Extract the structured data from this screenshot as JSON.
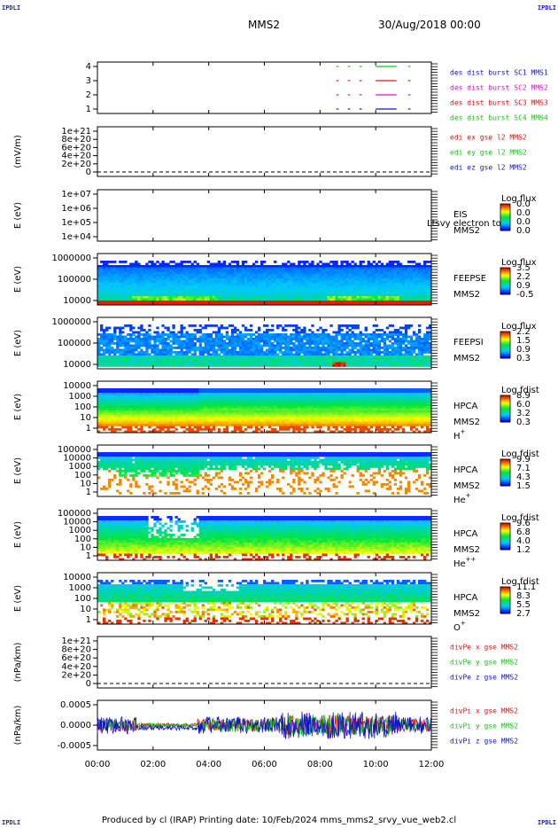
{
  "corner_label": "IPDLI",
  "header": {
    "spacecraft": "MMS2",
    "date": "30/Aug/2018 00:00"
  },
  "footer": {
    "text": "Produced by cl (IRAP)    Printing date: 10/Feb/2024    mms_mms2_srvy_vue_web2.cl"
  },
  "chart_data": {
    "type": "multi-panel",
    "x": {
      "ticks": [
        "00:00",
        "02:00",
        "04:00",
        "06:00",
        "08:00",
        "10:00",
        "12:00"
      ],
      "range": [
        "00:00",
        "12:00"
      ]
    },
    "panels": [
      {
        "id": "burst",
        "type": "timeline",
        "yticks": [
          "4",
          "3",
          "2",
          "1"
        ],
        "legend": [
          {
            "label": "des dist burst SC1 MMS1",
            "color": "#1414c8"
          },
          {
            "label": "des dist burst SC2 MMS2",
            "color": "#d214d2"
          },
          {
            "label": "des dist burst SC3 MMS3",
            "color": "#e01414"
          },
          {
            "label": "des dist burst SC4 MMS4",
            "color": "#14c814"
          }
        ],
        "intervals": [
          [
            "08:35",
            "08:40"
          ],
          [
            "09:00",
            "09:05"
          ],
          [
            "09:25",
            "09:30"
          ],
          [
            "10:00",
            "10:45"
          ],
          [
            "11:10",
            "11:15"
          ]
        ]
      },
      {
        "id": "edi",
        "type": "line",
        "ylabel": "(mV/m)",
        "yticks": [
          "1e+21",
          "8e+20",
          "6e+20",
          "4e+20",
          "2e+20",
          "0"
        ],
        "legend": [
          {
            "label": "edi ex gse l2 MMS2",
            "color": "#e01414"
          },
          {
            "label": "edi ey gse l2 MMS2",
            "color": "#14c814"
          },
          {
            "label": "edi ez gse l2 MMS2",
            "color": "#1414c8"
          }
        ]
      },
      {
        "id": "eis",
        "type": "heatmap",
        "ylabel": "E (eV)",
        "yticks": [
          "1e+07",
          "1e+06",
          "1e+05",
          "1e+04"
        ],
        "names": [
          "EIS",
          "MMS2"
        ],
        "overlay": "Ltsvy electron to",
        "cbar_title": "Log flux",
        "cbar_ticks": [
          "0.0",
          "0.0",
          "0.0",
          "0.0"
        ]
      },
      {
        "id": "feepse",
        "type": "heatmap",
        "ylabel": "E (eV)",
        "yticks": [
          "1000000",
          "100000",
          "10000"
        ],
        "names": [
          "FEEPSE",
          "MMS2"
        ],
        "cbar_title": "Log flux",
        "cbar_ticks": [
          "3.5",
          "2.2",
          "0.9",
          "-0.5"
        ]
      },
      {
        "id": "feepsi",
        "type": "heatmap",
        "ylabel": "E (eV)",
        "yticks": [
          "1000000",
          "100000",
          "10000"
        ],
        "names": [
          "FEEPSI",
          "MMS2"
        ],
        "cbar_title": "Log flux",
        "cbar_ticks": [
          "2.2",
          "1.5",
          "0.9",
          "0.3"
        ]
      },
      {
        "id": "hpca_h",
        "type": "heatmap",
        "ylabel": "E (eV)",
        "yticks": [
          "10000",
          "1000",
          "100",
          "10",
          "1"
        ],
        "names": [
          "HPCA",
          "MMS2"
        ],
        "species": "H",
        "species_sup": "+",
        "cbar_title": "Log fdist",
        "cbar_ticks": [
          "8.9",
          "6.0",
          "3.2",
          "0.3"
        ]
      },
      {
        "id": "hpca_he1",
        "type": "heatmap",
        "ylabel": "E (eV)",
        "yticks": [
          "100000",
          "10000",
          "1000",
          "100",
          "10",
          "1"
        ],
        "names": [
          "HPCA",
          "MMS2"
        ],
        "species": "He",
        "species_sup": "+",
        "cbar_title": "Log fdist",
        "cbar_ticks": [
          "9.9",
          "7.1",
          "4.3",
          "1.5"
        ]
      },
      {
        "id": "hpca_he2",
        "type": "heatmap",
        "ylabel": "E (eV)",
        "yticks": [
          "100000",
          "10000",
          "1000",
          "100",
          "10",
          "1"
        ],
        "names": [
          "HPCA",
          "MMS2"
        ],
        "species": "He",
        "species_sup": "++",
        "cbar_title": "Log fdist",
        "cbar_ticks": [
          "9.6",
          "6.8",
          "4.0",
          "1.2"
        ]
      },
      {
        "id": "hpca_o",
        "type": "heatmap",
        "ylabel": "E (eV)",
        "yticks": [
          "10000",
          "1000",
          "100",
          "10",
          "1"
        ],
        "names": [
          "HPCA",
          "MMS2"
        ],
        "species": "O",
        "species_sup": "+",
        "cbar_title": "Log fdist",
        "cbar_ticks": [
          "11.1",
          "8.3",
          "5.5",
          "2.7"
        ]
      },
      {
        "id": "divpe",
        "type": "line",
        "ylabel": "(nPa/km)",
        "yticks": [
          "1e+21",
          "8e+20",
          "6e+20",
          "4e+20",
          "2e+20",
          "0"
        ],
        "legend": [
          {
            "label": "divPe x gse MMS2",
            "color": "#e01414"
          },
          {
            "label": "divPe y gse MMS2",
            "color": "#14c814"
          },
          {
            "label": "divPe z gse MMS2",
            "color": "#1414c8"
          }
        ]
      },
      {
        "id": "divpi",
        "type": "line",
        "ylabel": "(nPa/km)",
        "yticks": [
          "0.0005",
          "0.0000",
          "-0.0005"
        ],
        "ylim": [
          -0.00075,
          0.00075
        ],
        "legend": [
          {
            "label": "divPi x gse MMS2",
            "color": "#e01414"
          },
          {
            "label": "divPi y gse MMS2",
            "color": "#14c814"
          },
          {
            "label": "divPi z gse MMS2",
            "color": "#1414c8"
          }
        ]
      }
    ]
  }
}
